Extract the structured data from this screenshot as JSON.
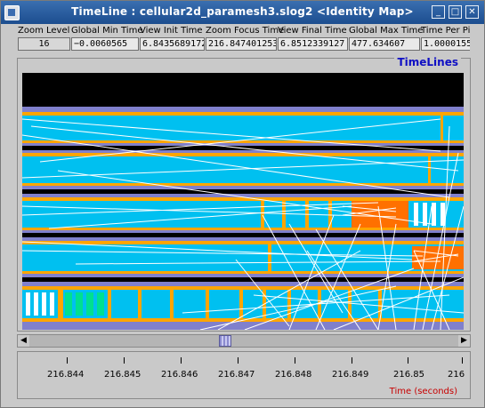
{
  "window": {
    "title": "TimeLine : cellular2d_paramesh3.slog2  <Identity Map>",
    "colors": {
      "titlebar": "#2a5d9f",
      "background": "#c9c9c9"
    }
  },
  "header": {
    "columns": [
      {
        "label": "Zoom Level",
        "value": "16"
      },
      {
        "label": "Global Min Time",
        "value": "−0.0060565"
      },
      {
        "label": "View  Init Time",
        "value": "6.8435689172"
      },
      {
        "label": "Zoom Focus Time",
        "value": "216.847401253"
      },
      {
        "label": "View Final Time",
        "value": "6.8512339127"
      },
      {
        "label": "Global Max Time",
        "value": "477.634607"
      },
      {
        "label": "Time Per Pi",
        "value": "1.00001554"
      }
    ]
  },
  "timelines": {
    "title": "TimeLines",
    "colors": {
      "state_cyan": "#00c0f0",
      "state_orange": "#ff7000",
      "border_orange": "#ffa500",
      "state_green": "#00e090",
      "message_lines": "#ffffff",
      "background": "#8080cc"
    }
  },
  "ruler": {
    "ticks": [
      "216.844",
      "216.845",
      "216.846",
      "216.847",
      "216.848",
      "216.849",
      "216.85",
      "216"
    ],
    "unit": "Time (seconds)"
  }
}
